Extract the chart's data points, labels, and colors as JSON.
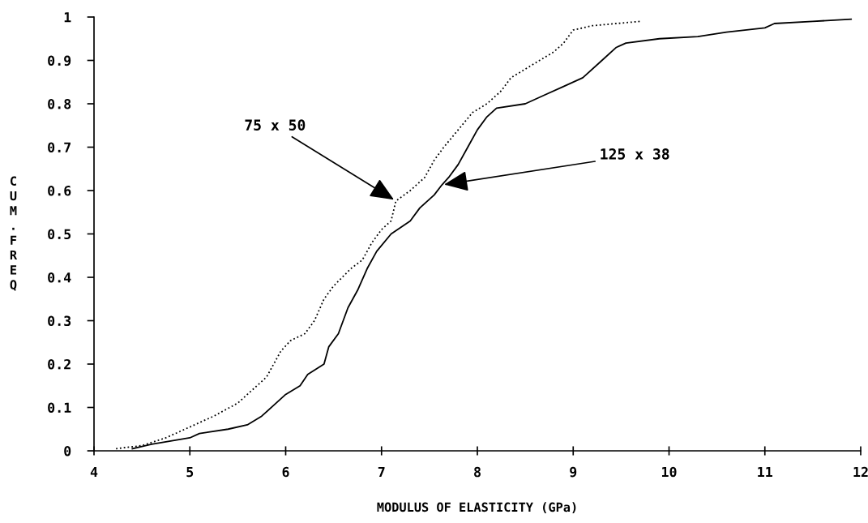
{
  "chart_data": {
    "type": "line",
    "xlabel": "MODULUS OF ELASTICITY (GPa)",
    "ylabel": "CUM.FREQ",
    "xlim": [
      4,
      12
    ],
    "xticks": [
      4,
      5,
      6,
      7,
      8,
      9,
      10,
      11,
      12
    ],
    "ylim": [
      0,
      1
    ],
    "yticks": [
      0,
      0.1,
      0.2,
      0.3,
      0.4,
      0.5,
      0.6,
      0.7,
      0.8,
      0.9,
      1
    ],
    "grid": false,
    "marker": "none",
    "series": [
      {
        "color": "#000000",
        "line_style": "dotted",
        "x": [
          4.23,
          4.5,
          4.75,
          5.0,
          5.25,
          5.5,
          5.65,
          5.8,
          5.95,
          6.05,
          6.2,
          6.3,
          6.4,
          6.5,
          6.68,
          6.8,
          6.9,
          7.0,
          7.1,
          7.15,
          7.3,
          7.45,
          7.55,
          7.65,
          7.8,
          7.95,
          8.1,
          8.25,
          8.35,
          8.5,
          8.65,
          8.8,
          8.9,
          9.0,
          9.2,
          9.7
        ],
        "values": [
          0.005,
          0.012,
          0.03,
          0.055,
          0.08,
          0.11,
          0.14,
          0.17,
          0.23,
          0.254,
          0.27,
          0.3,
          0.35,
          0.38,
          0.42,
          0.44,
          0.48,
          0.51,
          0.53,
          0.576,
          0.6,
          0.63,
          0.67,
          0.7,
          0.74,
          0.78,
          0.8,
          0.83,
          0.86,
          0.88,
          0.9,
          0.92,
          0.94,
          0.97,
          0.98,
          0.99
        ]
      },
      {
        "color": "#000000",
        "line_style": "solid",
        "x": [
          4.4,
          4.6,
          5.0,
          5.1,
          5.4,
          5.6,
          5.75,
          5.9,
          6.0,
          6.15,
          6.23,
          6.4,
          6.45,
          6.55,
          6.65,
          6.75,
          6.85,
          6.95,
          7.1,
          7.3,
          7.4,
          7.55,
          7.63,
          7.7,
          7.8,
          7.9,
          8.0,
          8.1,
          8.2,
          8.5,
          8.7,
          8.9,
          9.1,
          9.3,
          9.45,
          9.55,
          9.9,
          10.3,
          10.6,
          11.0,
          11.1,
          11.5,
          11.9
        ],
        "values": [
          0.005,
          0.015,
          0.03,
          0.04,
          0.05,
          0.06,
          0.08,
          0.11,
          0.13,
          0.15,
          0.176,
          0.2,
          0.24,
          0.27,
          0.33,
          0.37,
          0.42,
          0.46,
          0.5,
          0.53,
          0.56,
          0.59,
          0.613,
          0.63,
          0.66,
          0.7,
          0.74,
          0.77,
          0.79,
          0.8,
          0.82,
          0.84,
          0.86,
          0.9,
          0.93,
          0.94,
          0.95,
          0.955,
          0.965,
          0.975,
          0.985,
          0.99,
          0.995
        ]
      }
    ],
    "annotations": [
      {
        "text": "75 x 50",
        "x": 7.15,
        "y": 0.576
      },
      {
        "text": "125 x 38",
        "x": 7.63,
        "y": 0.613
      }
    ]
  }
}
